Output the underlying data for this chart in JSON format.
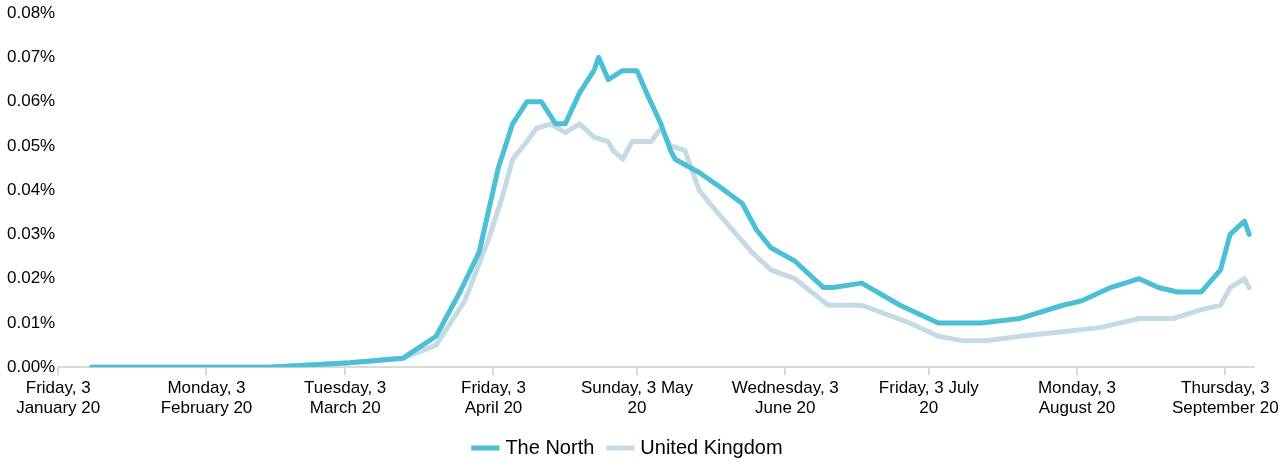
{
  "chart_data": {
    "type": "line",
    "legend": "bottom",
    "grid": false,
    "marker": "none",
    "line_style": "solid",
    "xlim": [
      "2020-01-03",
      "2020-09-09"
    ],
    "xticks": [
      {
        "value": "2020-01-03",
        "label": "Friday, 3 January 20"
      },
      {
        "value": "2020-02-03",
        "label": "Monday, 3 February 20"
      },
      {
        "value": "2020-03-03",
        "label": "Tuesday, 3 March 20"
      },
      {
        "value": "2020-04-03",
        "label": "Friday, 3 April 20"
      },
      {
        "value": "2020-05-03",
        "label": "Sunday, 3 May 20"
      },
      {
        "value": "2020-06-03",
        "label": "Wednesday, 3 June 20"
      },
      {
        "value": "2020-07-03",
        "label": "Friday, 3 July 20"
      },
      {
        "value": "2020-08-03",
        "label": "Monday, 3 August 20"
      },
      {
        "value": "2020-09-03",
        "label": "Thursday, 3 September 20"
      }
    ],
    "ylim": [
      0,
      0.08
    ],
    "yticks": [
      {
        "value": 0,
        "label": "0.00%"
      },
      {
        "value": 0.01,
        "label": "0.01%"
      },
      {
        "value": 0.02,
        "label": "0.02%"
      },
      {
        "value": 0.03,
        "label": "0.03%"
      },
      {
        "value": 0.04,
        "label": "0.04%"
      },
      {
        "value": 0.05,
        "label": "0.05%"
      },
      {
        "value": 0.06,
        "label": "0.06%"
      },
      {
        "value": 0.07,
        "label": "0.07%"
      },
      {
        "value": 0.08,
        "label": "0.08%"
      }
    ],
    "series": [
      {
        "name": "The North",
        "color": "#4bbfd6",
        "x": [
          "2020-01-10",
          "2020-02-16",
          "2020-03-04",
          "2020-03-15",
          "2020-03-22",
          "2020-03-27",
          "2020-03-31",
          "2020-04-04",
          "2020-04-07",
          "2020-04-10",
          "2020-04-13",
          "2020-04-16",
          "2020-04-18",
          "2020-04-21",
          "2020-04-24",
          "2020-04-25",
          "2020-04-27",
          "2020-04-30",
          "2020-05-03",
          "2020-05-05",
          "2020-05-08",
          "2020-05-10",
          "2020-05-11",
          "2020-05-16",
          "2020-05-20",
          "2020-05-25",
          "2020-05-28",
          "2020-05-31",
          "2020-06-05",
          "2020-06-11",
          "2020-06-13",
          "2020-06-19",
          "2020-06-27",
          "2020-07-05",
          "2020-07-14",
          "2020-07-22",
          "2020-07-31",
          "2020-08-04",
          "2020-08-10",
          "2020-08-16",
          "2020-08-20",
          "2020-08-24",
          "2020-08-29",
          "2020-09-02",
          "2020-09-04",
          "2020-09-07",
          "2020-09-08"
        ],
        "values": [
          0,
          0,
          0.001,
          0.002,
          0.007,
          0.017,
          0.026,
          0.045,
          0.055,
          0.06,
          0.06,
          0.055,
          0.055,
          0.062,
          0.067,
          0.07,
          0.065,
          0.067,
          0.067,
          0.062,
          0.055,
          0.049,
          0.047,
          0.044,
          0.041,
          0.037,
          0.031,
          0.027,
          0.024,
          0.018,
          0.018,
          0.019,
          0.014,
          0.01,
          0.01,
          0.011,
          0.014,
          0.015,
          0.018,
          0.02,
          0.018,
          0.017,
          0.017,
          0.022,
          0.03,
          0.033,
          0.03
        ]
      },
      {
        "name": "United Kingdom",
        "color": "#c5dbe3",
        "x": [
          "2020-01-10",
          "2020-02-16",
          "2020-03-04",
          "2020-03-15",
          "2020-03-22",
          "2020-03-28",
          "2020-04-02",
          "2020-04-05",
          "2020-04-07",
          "2020-04-10",
          "2020-04-12",
          "2020-04-15",
          "2020-04-18",
          "2020-04-21",
          "2020-04-24",
          "2020-04-27",
          "2020-04-28",
          "2020-04-30",
          "2020-05-02",
          "2020-05-06",
          "2020-05-08",
          "2020-05-10",
          "2020-05-13",
          "2020-05-16",
          "2020-05-19",
          "2020-05-23",
          "2020-05-27",
          "2020-05-31",
          "2020-06-05",
          "2020-06-12",
          "2020-06-19",
          "2020-06-29",
          "2020-07-05",
          "2020-07-10",
          "2020-07-15",
          "2020-07-22",
          "2020-07-31",
          "2020-08-08",
          "2020-08-16",
          "2020-08-23",
          "2020-08-29",
          "2020-09-02",
          "2020-09-04",
          "2020-09-07",
          "2020-09-08"
        ],
        "values": [
          0,
          0,
          0.001,
          0.002,
          0.005,
          0.015,
          0.029,
          0.039,
          0.047,
          0.051,
          0.054,
          0.055,
          0.053,
          0.055,
          0.052,
          0.051,
          0.049,
          0.047,
          0.051,
          0.051,
          0.054,
          0.05,
          0.049,
          0.04,
          0.036,
          0.031,
          0.026,
          0.022,
          0.02,
          0.014,
          0.014,
          0.01,
          0.007,
          0.006,
          0.006,
          0.007,
          0.008,
          0.009,
          0.011,
          0.011,
          0.013,
          0.014,
          0.018,
          0.02,
          0.018
        ]
      }
    ]
  }
}
